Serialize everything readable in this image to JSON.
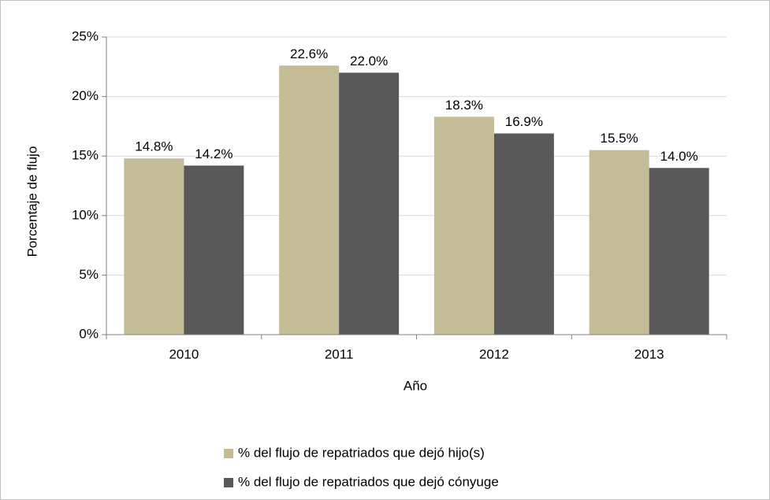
{
  "chart_data": {
    "type": "bar",
    "categories": [
      "2010",
      "2011",
      "2012",
      "2013"
    ],
    "series": [
      {
        "name": "% del flujo de repatriados que dejó hijo(s)",
        "color": "#c4bc96",
        "values": [
          14.8,
          22.6,
          18.3,
          15.5
        ],
        "value_labels": [
          "14.8%",
          "22.6%",
          "18.3%",
          "15.5%"
        ]
      },
      {
        "name": "% del flujo de repatriados que dejó cónyuge",
        "color": "#595959",
        "values": [
          14.2,
          22.0,
          16.9,
          14.0
        ],
        "value_labels": [
          "14.2%",
          "22.0%",
          "16.9%",
          "14.0%"
        ]
      }
    ],
    "xlabel": "Año",
    "ylabel": "Porcentaje de flujo",
    "ylim": [
      0,
      25
    ],
    "yticks": [
      {
        "value": 0,
        "label": "0%"
      },
      {
        "value": 5,
        "label": "5%"
      },
      {
        "value": 10,
        "label": "10%"
      },
      {
        "value": 15,
        "label": "15%"
      },
      {
        "value": 20,
        "label": "20%"
      },
      {
        "value": 25,
        "label": "25%"
      }
    ],
    "grid": true,
    "legend": "bottom"
  }
}
